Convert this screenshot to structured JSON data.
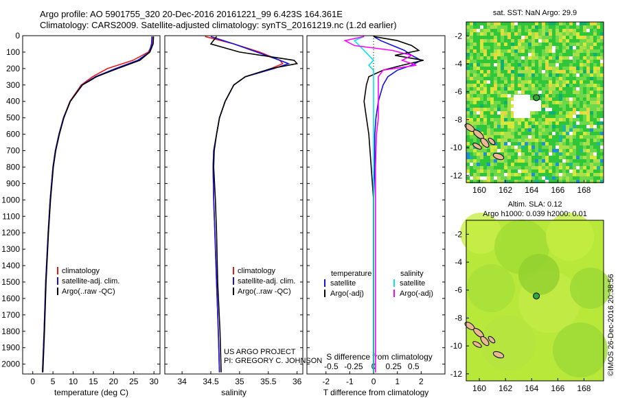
{
  "header": {
    "line1": "Argo profile: AO 5901755_320 20-Dec-2016 20161221_99 6.423S 164.361E",
    "line2": "Climatology: CARS2009. Satellite-adjusted climatology: synTS_20161219.nc (1.2d earlier)"
  },
  "credit": {
    "project": "US ARGO PROJECT",
    "pi": "PI: GREGORY C. JOHNSON",
    "imos": "©IMOS 26-Dec-2016 20:38:56"
  },
  "colors": {
    "climatology": "#e41a1c",
    "satellite": "#1010e0",
    "argo": "#000000",
    "sal_satellite": "#00e5ee",
    "sal_argo": "#ff00ff"
  },
  "chart_data": [
    {
      "type": "line",
      "id": "temperature",
      "xlabel": "temperature (deg C)",
      "xlim": [
        -2.5,
        31.5
      ],
      "ylim": [
        2060,
        0
      ],
      "x_ticks": [
        0,
        5,
        10,
        15,
        20,
        25,
        30
      ],
      "y_ticks": [
        0,
        100,
        200,
        300,
        400,
        500,
        600,
        700,
        800,
        900,
        1000,
        1100,
        1200,
        1300,
        1400,
        1500,
        1600,
        1700,
        1800,
        1900,
        2000
      ],
      "legend": [
        "climatology",
        "satellite-adj. clim.",
        "Argo(..raw -QC)"
      ],
      "depth": [
        5,
        50,
        100,
        150,
        200,
        250,
        300,
        400,
        500,
        600,
        700,
        800,
        1000,
        1200,
        1500,
        1800,
        2050
      ],
      "series": [
        {
          "name": "climatology",
          "values": [
            29.8,
            29.7,
            28.6,
            24.8,
            18.5,
            14.8,
            12.0,
            9.2,
            7.6,
            6.5,
            5.6,
            5.0,
            4.3,
            3.8,
            3.2,
            2.8,
            2.4
          ]
        },
        {
          "name": "satellite-adj. clim.",
          "values": [
            29.5,
            29.4,
            28.9,
            26.0,
            20.5,
            15.5,
            12.2,
            9.3,
            7.6,
            6.5,
            5.6,
            5.0,
            4.3,
            3.8,
            3.2,
            2.8,
            2.4
          ]
        },
        {
          "name": "Argo(..raw -QC)",
          "values": [
            29.9,
            29.8,
            29.0,
            26.5,
            21.0,
            15.8,
            12.3,
            9.3,
            7.7,
            6.6,
            5.7,
            5.1,
            4.4,
            3.9,
            3.3,
            2.9,
            2.5
          ]
        }
      ]
    },
    {
      "type": "line",
      "id": "salinity",
      "xlabel": "salinity",
      "xlim": [
        33.7,
        36.1
      ],
      "ylim": [
        2060,
        0
      ],
      "x_ticks": [
        34,
        34.5,
        35,
        35.5,
        36
      ],
      "legend": [
        "climatology",
        "satellite-adj. clim.",
        "Argo(..raw -QC)"
      ],
      "depth": [
        5,
        50,
        100,
        150,
        170,
        200,
        250,
        300,
        400,
        500,
        600,
        700,
        800,
        1000,
        1200,
        1500,
        1800,
        2050
      ],
      "series": [
        {
          "name": "climatology",
          "values": [
            34.4,
            34.9,
            35.35,
            35.7,
            35.75,
            35.55,
            35.1,
            34.9,
            34.75,
            34.65,
            34.6,
            34.55,
            34.54,
            34.55,
            34.57,
            34.6,
            34.63,
            34.65
          ]
        },
        {
          "name": "satellite-adj. clim.",
          "values": [
            34.5,
            34.9,
            35.3,
            35.7,
            35.85,
            35.6,
            35.1,
            34.9,
            34.75,
            34.65,
            34.6,
            34.55,
            34.54,
            34.55,
            34.57,
            34.6,
            34.63,
            34.65
          ]
        },
        {
          "name": "Argo(..raw -QC)",
          "values": [
            34.6,
            34.5,
            35.0,
            35.95,
            36.0,
            35.55,
            35.1,
            34.9,
            34.75,
            34.65,
            34.6,
            34.56,
            34.55,
            34.58,
            34.6,
            34.62,
            34.66,
            34.68
          ]
        }
      ]
    },
    {
      "type": "line",
      "id": "difference",
      "xlabel": "T difference from climatology",
      "xlabel_top": "S difference from climatology",
      "xlim": [
        -2.8,
        3.0
      ],
      "ylim": [
        2060,
        0
      ],
      "x_ticks": [
        -2,
        -1,
        0,
        1,
        2
      ],
      "x_ticks_top": [
        "-0.5",
        "-0.25",
        "0",
        "0.25",
        "0.5"
      ],
      "legend_headers": [
        "temperature",
        "salinity"
      ],
      "legend": [
        "satellite",
        "Argo(-adj)",
        "satellite",
        "Argo(-adj)"
      ],
      "depth": [
        5,
        30,
        60,
        90,
        120,
        150,
        180,
        210,
        250,
        300,
        400,
        500,
        600,
        800,
        1000,
        1200,
        1500,
        1800,
        2050
      ],
      "series": [
        {
          "name": "satellite",
          "group": "temperature",
          "values": [
            0.0,
            0.3,
            0.8,
            1.3,
            1.6,
            2.0,
            1.6,
            1.0,
            0.6,
            0.4,
            0.2,
            0.1,
            0.05,
            0.05,
            0.0,
            0.0,
            0.0,
            0.0,
            0.0
          ]
        },
        {
          "name": "Argo(-adj)",
          "group": "temperature",
          "values": [
            0.0,
            1.0,
            1.6,
            1.9,
            0.9,
            2.1,
            1.2,
            0.4,
            -0.2,
            -0.3,
            -0.4,
            -0.3,
            -0.2,
            -0.1,
            0.0,
            0.0,
            0.0,
            0.0,
            0.0
          ]
        },
        {
          "name": "satellite",
          "group": "salinity",
          "values": [
            -0.1,
            -0.2,
            -0.15,
            -0.1,
            -0.05,
            0.0,
            -0.05,
            0.0,
            0.0,
            0.0,
            0.0,
            0.0,
            0.0,
            0.0,
            0.0,
            0.0,
            0.0,
            0.0,
            0.0
          ]
        },
        {
          "name": "Argo(-adj)",
          "group": "salinity",
          "values": [
            -0.1,
            -0.3,
            -0.2,
            0.2,
            0.4,
            0.3,
            0.45,
            0.1,
            0.05,
            0.05,
            0.05,
            0.05,
            0.03,
            0.02,
            0.02,
            0.02,
            0.02,
            0.02,
            0.02
          ]
        }
      ]
    },
    {
      "type": "heatmap",
      "id": "sst_map",
      "title": "sat. SST: NaN Argo: 29.9",
      "xlim": [
        159,
        169.5
      ],
      "ylim": [
        -12.5,
        -1
      ],
      "x_ticks": [
        160,
        162,
        164,
        166,
        168
      ],
      "y_ticks": [
        -2,
        -4,
        -6,
        -8,
        -10,
        -12
      ],
      "float_position": [
        164.361,
        -6.423
      ]
    },
    {
      "type": "heatmap",
      "id": "sla_map",
      "title": "Altim. SLA: 0.12",
      "subtitle": "Argo h1000: 0.039 h2000: 0.01",
      "xlim": [
        159,
        169.5
      ],
      "ylim": [
        -12.5,
        -1
      ],
      "x_ticks": [
        160,
        162,
        164,
        166,
        168
      ],
      "y_ticks": [
        -2,
        -4,
        -6,
        -8,
        -10,
        -12
      ],
      "float_position": [
        164.361,
        -6.423
      ]
    }
  ]
}
